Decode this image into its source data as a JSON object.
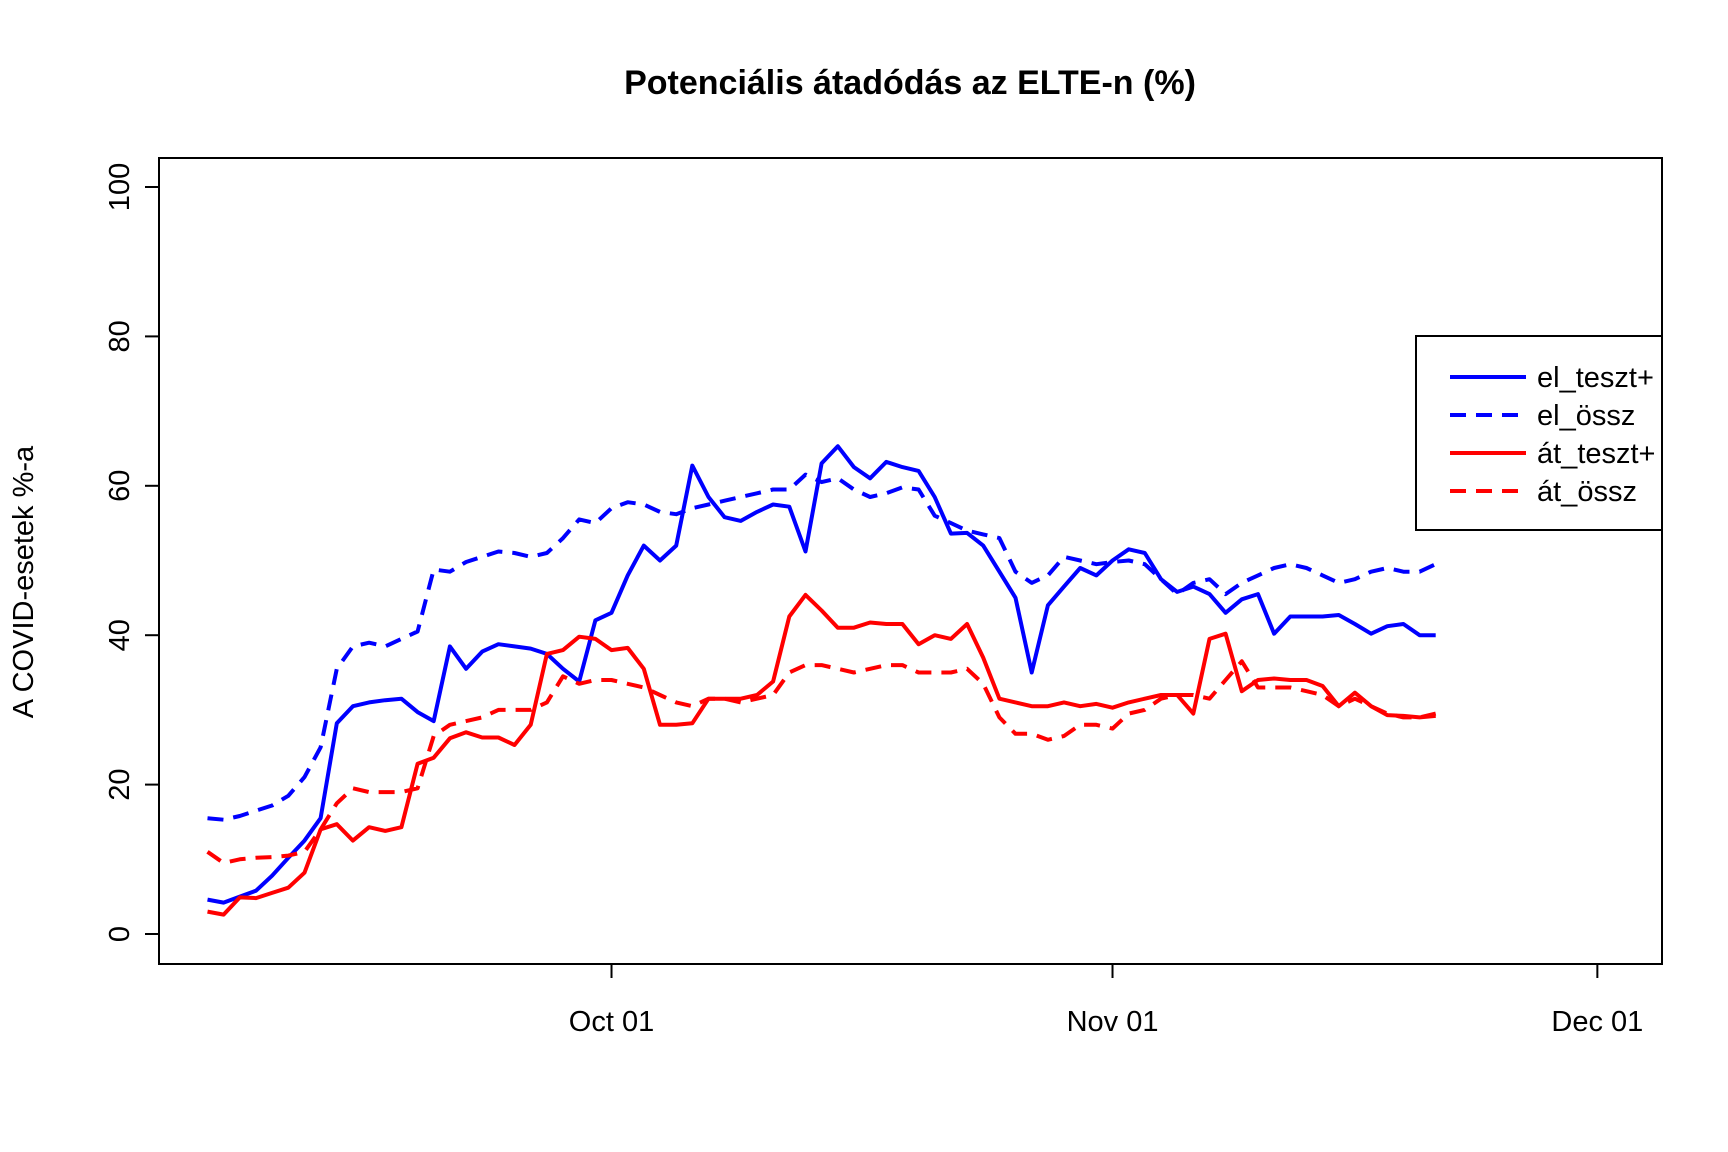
{
  "chart_data": {
    "type": "line",
    "title": "Potenciális átadódás az ELTE-n (%)",
    "xlabel": "",
    "ylabel": "A COVID-esetek %-a",
    "ylim": [
      0,
      100
    ],
    "yticks": [
      0,
      20,
      40,
      60,
      80,
      100
    ],
    "x_start": "2020-09-06",
    "x_end": "2020-11-19",
    "xlim": [
      "2020-09-03",
      "2020-12-05"
    ],
    "xticks": [
      {
        "date": "2020-10-01",
        "label": "Oct 01"
      },
      {
        "date": "2020-11-01",
        "label": "Nov 01"
      },
      {
        "date": "2020-12-01",
        "label": "Dec 01"
      }
    ],
    "legend_position": "right",
    "grid": false,
    "series": [
      {
        "name": "el_teszt+",
        "color": "#0000ff",
        "dash": false,
        "values": [
          4.6,
          4.2,
          5.0,
          5.8,
          7.8,
          10.2,
          12.5,
          15.5,
          28.2,
          30.5,
          31.0,
          31.3,
          31.5,
          29.7,
          28.5,
          38.5,
          35.5,
          37.8,
          38.8,
          38.5,
          38.2,
          37.5,
          35.5,
          33.8,
          42.0,
          43.0,
          48.0,
          52.0,
          50.0,
          52.0,
          62.7,
          58.5,
          55.8,
          55.3,
          56.5,
          57.5,
          57.2,
          51.2,
          63.0,
          65.3,
          62.5,
          61.0,
          63.2,
          62.5,
          62.0,
          58.5,
          53.6,
          53.7,
          52.0,
          48.5,
          45.0,
          35.0,
          44.0,
          46.5,
          49.0,
          48.0,
          50.0,
          51.5,
          51.0,
          47.5,
          45.8,
          46.5,
          45.5,
          43.0,
          44.8,
          45.5,
          40.2,
          42.5,
          42.5,
          42.5,
          42.7,
          41.5,
          40.2,
          41.2,
          41.5,
          40.0,
          40.0
        ]
      },
      {
        "name": "el_össz",
        "color": "#0000ff",
        "dash": true,
        "values": [
          15.5,
          15.3,
          15.8,
          16.5,
          17.2,
          18.5,
          21.0,
          25.0,
          35.5,
          38.5,
          39.0,
          38.5,
          39.5,
          40.5,
          48.8,
          48.5,
          49.8,
          50.5,
          51.2,
          51.0,
          50.5,
          51.0,
          53.0,
          55.5,
          55.0,
          57.0,
          57.8,
          57.5,
          56.5,
          56.2,
          57.0,
          57.5,
          58.0,
          58.5,
          59.0,
          59.5,
          59.5,
          61.5,
          60.5,
          61.0,
          59.5,
          58.5,
          59.0,
          59.8,
          59.5,
          56.0,
          55.0,
          54.0,
          53.5,
          53.0,
          48.5,
          47.0,
          48.0,
          50.5,
          50.0,
          49.5,
          49.8,
          50.0,
          49.5,
          47.5,
          45.5,
          47.0,
          47.5,
          45.5,
          47.0,
          48.0,
          49.0,
          49.5,
          49.0,
          48.0,
          47.0,
          47.5,
          48.5,
          49.0,
          48.5,
          48.5,
          49.5
        ]
      },
      {
        "name": "át_teszt+",
        "color": "#ff0000",
        "dash": false,
        "values": [
          3.0,
          2.6,
          4.9,
          4.8,
          5.5,
          6.2,
          8.2,
          14.0,
          14.7,
          12.5,
          14.3,
          13.8,
          14.3,
          22.8,
          23.6,
          26.2,
          27.0,
          26.3,
          26.3,
          25.3,
          28.0,
          37.5,
          38.0,
          39.8,
          39.5,
          38.0,
          38.3,
          35.5,
          28.0,
          28.0,
          28.2,
          31.5,
          31.5,
          31.5,
          32.0,
          33.8,
          42.5,
          45.4,
          43.3,
          41.0,
          41.0,
          41.7,
          41.5,
          41.5,
          38.8,
          40.0,
          39.5,
          41.5,
          37.0,
          31.5,
          31.0,
          30.5,
          30.5,
          31.0,
          30.5,
          30.8,
          30.3,
          31.0,
          31.5,
          32.0,
          32.0,
          29.5,
          39.5,
          40.2,
          32.5,
          34.0,
          34.2,
          34.0,
          34.0,
          33.2,
          30.5,
          32.3,
          30.5,
          29.3,
          29.2,
          29.0,
          29.2
        ]
      },
      {
        "name": "át_össz",
        "color": "#ff0000",
        "dash": true,
        "values": [
          11.0,
          9.5,
          10.0,
          10.2,
          10.3,
          10.5,
          11.0,
          14.0,
          17.5,
          19.5,
          19.0,
          19.0,
          19.0,
          19.5,
          26.5,
          28.0,
          28.5,
          29.0,
          30.0,
          30.0,
          30.0,
          31.0,
          34.5,
          33.5,
          34.0,
          34.0,
          33.5,
          33.0,
          32.0,
          31.0,
          30.5,
          31.5,
          31.5,
          31.0,
          31.5,
          32.0,
          35.0,
          36.0,
          36.0,
          35.5,
          35.0,
          35.5,
          36.0,
          36.0,
          35.0,
          35.0,
          35.0,
          35.5,
          33.5,
          29.0,
          26.8,
          26.8,
          26.0,
          26.5,
          28.0,
          28.0,
          27.5,
          29.5,
          30.0,
          31.5,
          32.0,
          32.0,
          31.5,
          34.0,
          36.5,
          33.0,
          33.0,
          33.0,
          32.5,
          32.0,
          30.5,
          31.5,
          30.5,
          29.5,
          29.0,
          29.0,
          29.5
        ]
      }
    ]
  }
}
